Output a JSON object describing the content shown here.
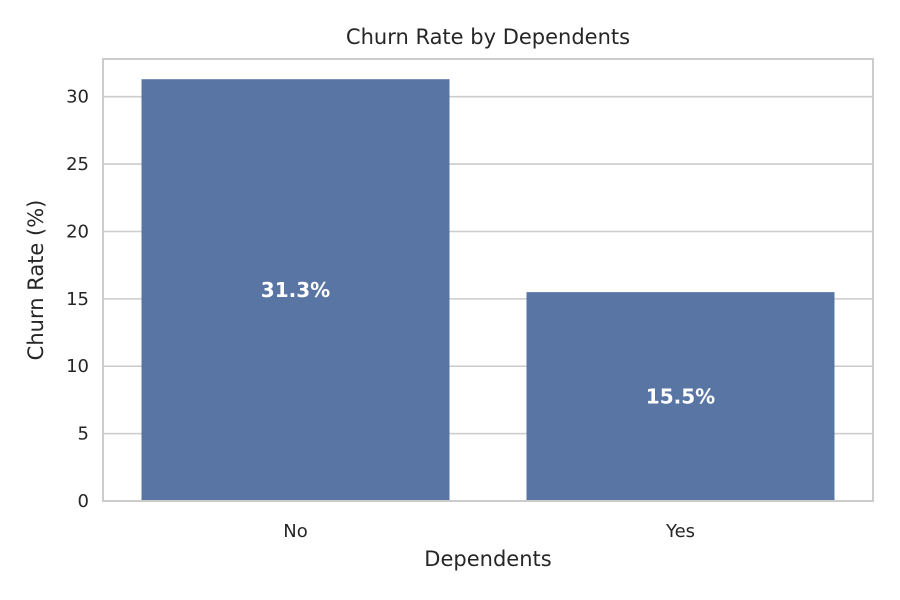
{
  "chart_data": {
    "type": "bar",
    "title": "Churn Rate by Dependents",
    "xlabel": "Dependents",
    "ylabel": "Churn Rate (%)",
    "categories": [
      "No",
      "Yes"
    ],
    "values": [
      31.3,
      15.5
    ],
    "value_labels": [
      "31.3%",
      "15.5%"
    ],
    "ylim": [
      0,
      32.8
    ],
    "yticks": [
      0,
      5,
      10,
      15,
      20,
      25,
      30
    ],
    "grid": true,
    "bar_color": "#5975a4",
    "grid_color": "#cccccc"
  }
}
